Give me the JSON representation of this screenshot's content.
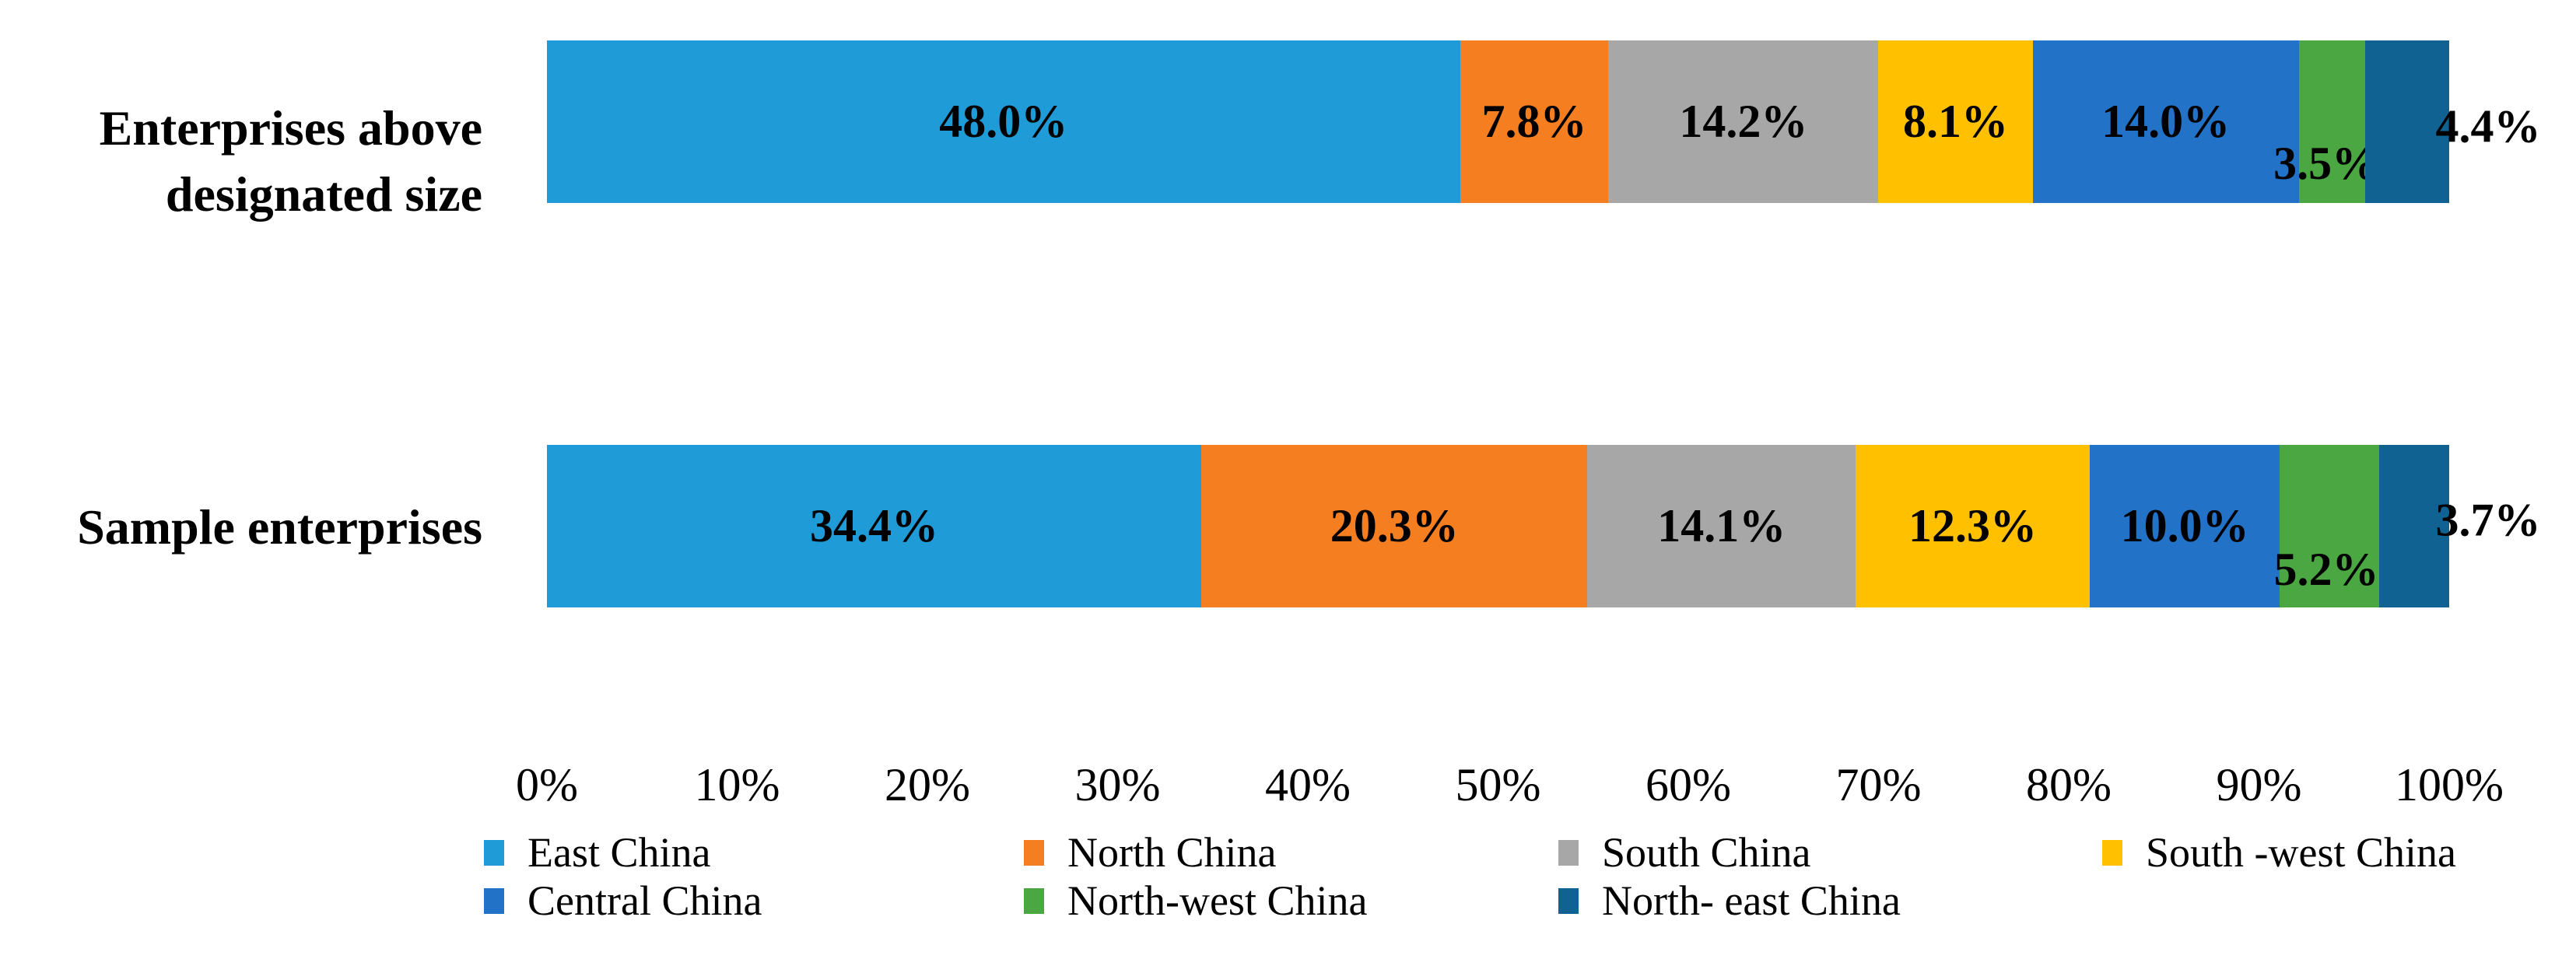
{
  "chart_data": {
    "type": "bar",
    "variant": "horizontal-stacked",
    "title": "",
    "xlabel": "",
    "ylabel": "",
    "unit": "%",
    "categories": [
      "Enterprises above designated size",
      "Sample enterprises"
    ],
    "category_label_lines": [
      [
        "Enterprises above",
        "designated size"
      ],
      [
        "Sample enterprises"
      ]
    ],
    "series": [
      {
        "name": "East China",
        "color": "#1F9BD8",
        "values": [
          48.0,
          34.4
        ]
      },
      {
        "name": "North China",
        "color": "#F57E20",
        "values": [
          7.8,
          20.3
        ]
      },
      {
        "name": "South China",
        "color": "#A7A7A7",
        "values": [
          14.2,
          14.1
        ]
      },
      {
        "name": "South -west China",
        "color": "#FFC000",
        "values": [
          8.1,
          12.3
        ]
      },
      {
        "name": "Central China",
        "color": "#2272C8",
        "values": [
          14.0,
          10.0
        ]
      },
      {
        "name": "North-west China",
        "color": "#4AA742",
        "values": [
          3.5,
          5.2
        ]
      },
      {
        "name": "North- east China",
        "color": "#0F6291",
        "values": [
          4.4,
          3.7
        ]
      }
    ],
    "data_labels": [
      [
        "48.0%",
        "7.8%",
        "14.2%",
        "8.1%",
        "14.0%",
        "3.5%",
        "4.4%"
      ],
      [
        "34.4%",
        "20.3%",
        "14.1%",
        "12.3%",
        "10.0%",
        "5.2%",
        "3.7%"
      ]
    ],
    "x_axis": {
      "min": 0,
      "max": 100,
      "grid": false,
      "ticks": [
        "0%",
        "10%",
        "20%",
        "30%",
        "40%",
        "50%",
        "60%",
        "70%",
        "80%",
        "90%",
        "100%"
      ]
    },
    "legend": {
      "position": "bottom",
      "rows": [
        [
          "East China",
          "North China",
          "South China",
          "South -west China"
        ],
        [
          "Central China",
          "North-west China",
          "North- east China"
        ]
      ]
    }
  }
}
